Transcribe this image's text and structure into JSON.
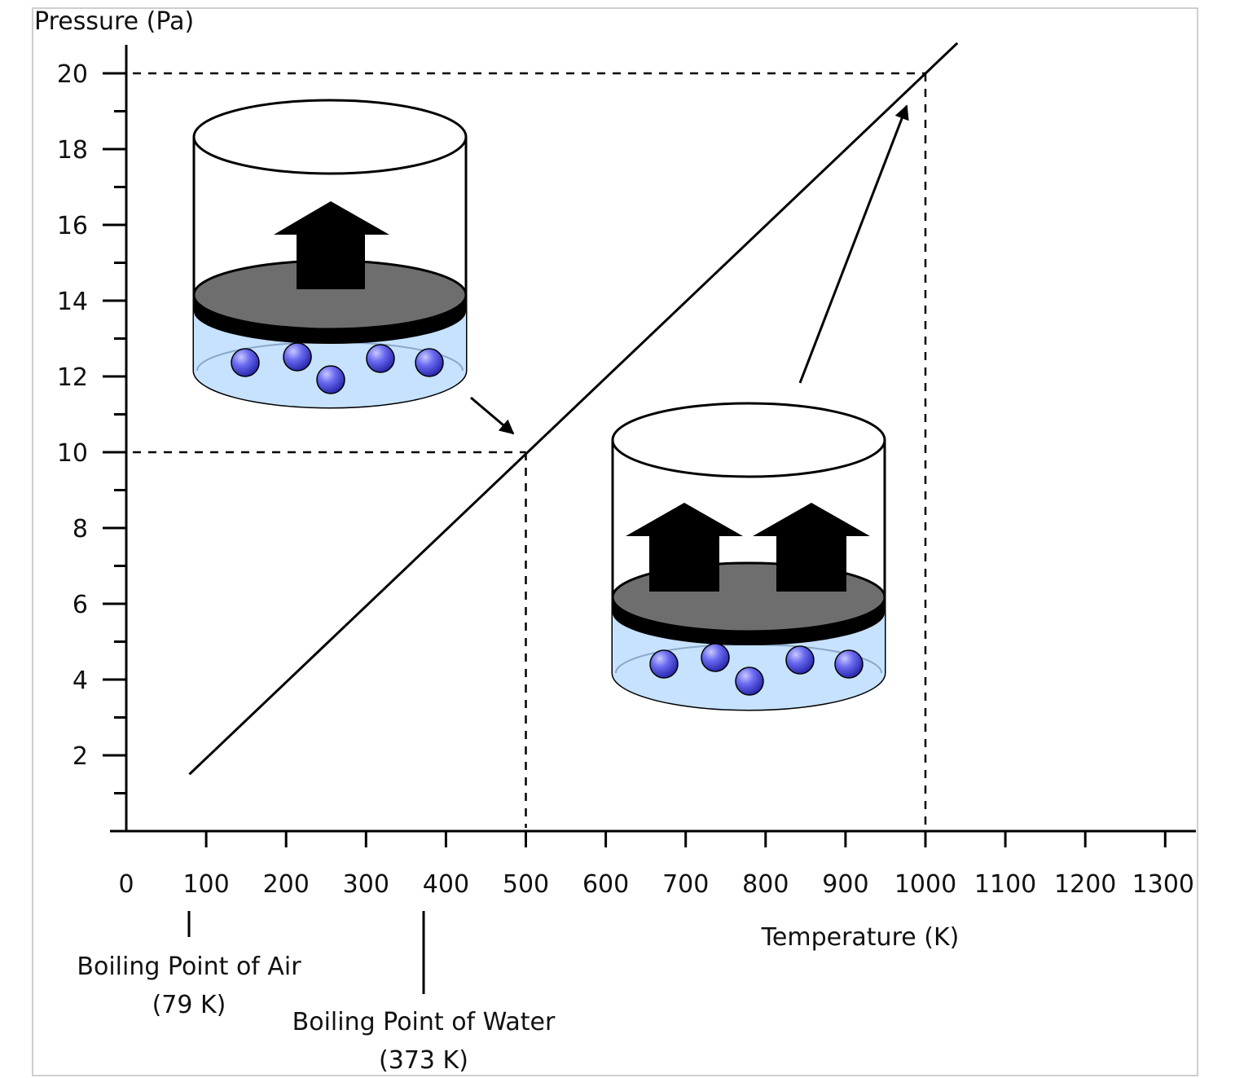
{
  "chart_data": {
    "type": "line",
    "xlabel": "Temperature (K)",
    "ylabel": "Pressure (Pa)",
    "xlim": [
      0,
      1300
    ],
    "ylim": [
      0,
      20
    ],
    "x_ticks": [
      0,
      100,
      200,
      300,
      400,
      500,
      600,
      700,
      800,
      900,
      1000,
      1100,
      1200,
      1300
    ],
    "y_ticks": [
      2,
      4,
      6,
      8,
      10,
      12,
      14,
      16,
      18,
      20
    ],
    "grid": false,
    "series": [
      {
        "x": [
          79,
          1040
        ],
        "y": [
          1.5,
          20.8
        ],
        "color": "#000000"
      }
    ],
    "reference_points": [
      {
        "x": 500,
        "y": 10
      },
      {
        "x": 1000,
        "y": 20
      }
    ],
    "annotations": [
      {
        "line1": "Boiling Point of Air",
        "line2": "(79 K)",
        "x": 79
      },
      {
        "line1": "Boiling Point of Water",
        "line2": "(373 K)",
        "x": 373
      }
    ],
    "illustrations": {
      "container_small": {
        "pressure_arrows": 1,
        "particles": 5
      },
      "container_large": {
        "pressure_arrows": 2,
        "particles": 5
      }
    },
    "colors": {
      "liquid": "#c6e2ff",
      "particle": "#6a6af0",
      "piston": "#6e6e6e",
      "line": "#000000"
    }
  }
}
